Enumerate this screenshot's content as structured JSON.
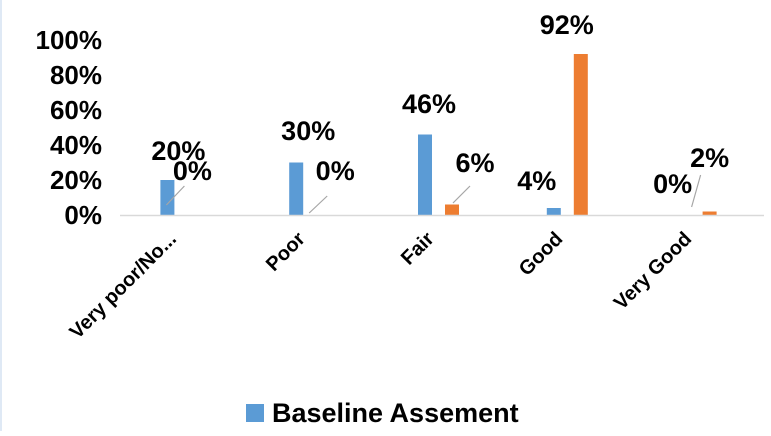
{
  "chart_data": {
    "type": "bar",
    "categories": [
      "Very poor/No...",
      "Poor",
      "Fair",
      "Good",
      "Very Good"
    ],
    "series": [
      {
        "name": "Baseline Assement",
        "color": "#5b9bd5",
        "values": [
          20,
          30,
          46,
          4,
          0
        ],
        "labels": [
          "20%",
          "30%",
          "46%",
          "4%",
          "0%"
        ]
      },
      {
        "color": "#ed7d31",
        "values": [
          0,
          0,
          6,
          92,
          2
        ],
        "labels": [
          "0%",
          "0%",
          "6%",
          "92%",
          "2%"
        ]
      }
    ],
    "title": "",
    "xlabel": "",
    "ylabel": "",
    "ylim": [
      0,
      100
    ],
    "yticks": [
      "0%",
      "20%",
      "40%",
      "60%",
      "80%",
      "100%"
    ],
    "grid": false,
    "legend_position": "bottom",
    "legend": [
      {
        "label": "Baseline Assement",
        "color": "#5b9bd5"
      }
    ]
  }
}
